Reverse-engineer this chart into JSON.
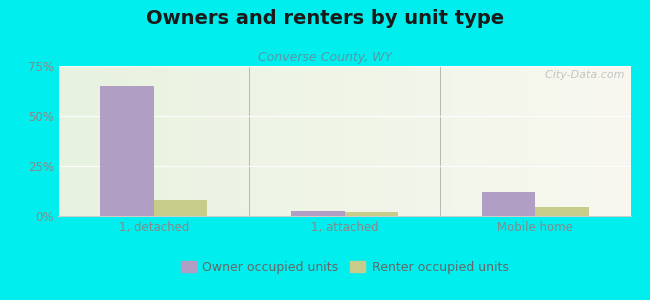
{
  "title": "Owners and renters by unit type",
  "subtitle": "Converse County, WY",
  "categories": [
    "1, detached",
    "1, attached",
    "Mobile home"
  ],
  "owner_values": [
    65.0,
    2.5,
    12.0
  ],
  "renter_values": [
    8.0,
    2.0,
    4.5
  ],
  "owner_color": "#b09ec4",
  "renter_color": "#c8cc8a",
  "ylim": [
    0,
    75
  ],
  "yticks": [
    0,
    25,
    50,
    75
  ],
  "ytick_labels": [
    "0%",
    "25%",
    "50%",
    "75%"
  ],
  "bg_color": "#00eeee",
  "bar_width": 0.28,
  "title_fontsize": 14,
  "subtitle_fontsize": 9,
  "legend_fontsize": 9,
  "tick_color": "#888888",
  "subtitle_color": "#5599aa",
  "watermark": "  City-Data.com"
}
